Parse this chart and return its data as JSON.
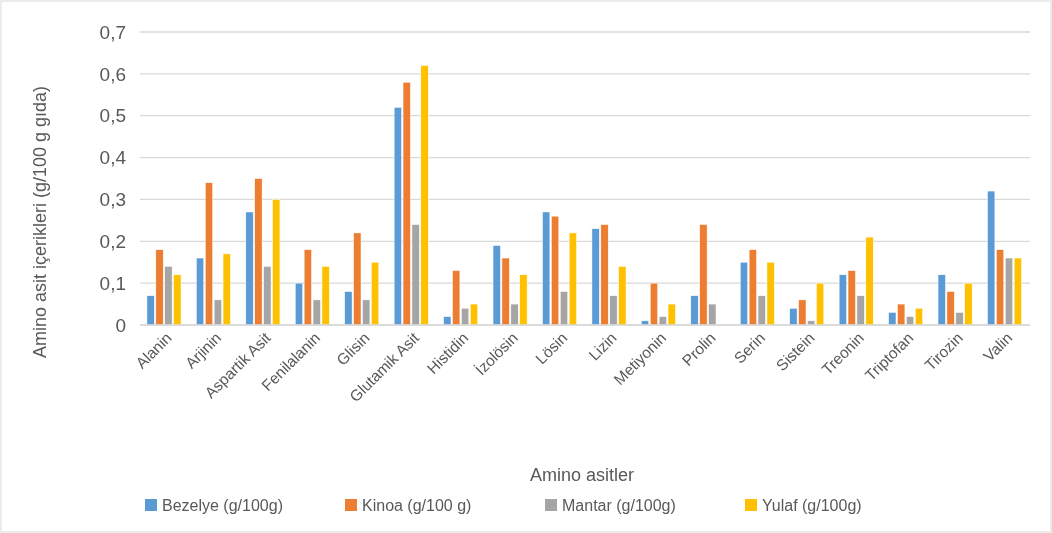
{
  "chart_data": {
    "type": "bar",
    "xlabel": "Amino asitler",
    "ylabel": "Amino asit içerikleri (g/100 g gıda)",
    "categories": [
      "Alanin",
      "Arjinin",
      "Aspartik Asit",
      "Fenilalanin",
      "Glisin",
      "Glutamik Asit",
      "Histidin",
      "İzolösin",
      "Lösin",
      "Lizin",
      "Metiyonin",
      "Prolin",
      "Serin",
      "Sistein",
      "Treonin",
      "Triptofan",
      "Tirozin",
      "Valin"
    ],
    "series": [
      {
        "name": "Bezelye (g/100g)",
        "color": "#5b9bd5",
        "values": [
          0.07,
          0.16,
          0.27,
          0.1,
          0.08,
          0.52,
          0.02,
          0.19,
          0.27,
          0.23,
          0.01,
          0.07,
          0.15,
          0.04,
          0.12,
          0.03,
          0.12,
          0.32
        ]
      },
      {
        "name": "Kinoa (g/100 g)",
        "color": "#ed7d31",
        "values": [
          0.18,
          0.34,
          0.35,
          0.18,
          0.22,
          0.58,
          0.13,
          0.16,
          0.26,
          0.24,
          0.1,
          0.24,
          0.18,
          0.06,
          0.13,
          0.05,
          0.08,
          0.18
        ]
      },
      {
        "name": "Mantar (g/100g)",
        "color": "#a5a5a5",
        "values": [
          0.14,
          0.06,
          0.14,
          0.06,
          0.06,
          0.24,
          0.04,
          0.05,
          0.08,
          0.07,
          0.02,
          0.05,
          0.07,
          0.01,
          0.07,
          0.02,
          0.03,
          0.16
        ]
      },
      {
        "name": "Yulaf (g/100g)",
        "color": "#ffc000",
        "values": [
          0.12,
          0.17,
          0.3,
          0.14,
          0.15,
          0.62,
          0.05,
          0.12,
          0.22,
          0.14,
          0.05,
          null,
          0.15,
          0.1,
          0.21,
          0.04,
          0.1,
          0.16
        ]
      }
    ],
    "ylim": [
      0,
      0.7
    ],
    "yticks": [
      {
        "value": 0,
        "label": "0"
      },
      {
        "value": 0.1,
        "label": "0,1"
      },
      {
        "value": 0.2,
        "label": "0,2"
      },
      {
        "value": 0.3,
        "label": "0,3"
      },
      {
        "value": 0.4,
        "label": "0,4"
      },
      {
        "value": 0.5,
        "label": "0,5"
      },
      {
        "value": 0.6,
        "label": "0,6"
      },
      {
        "value": 0.7,
        "label": "0,7"
      }
    ],
    "grid": "y",
    "legend": "bottom"
  }
}
